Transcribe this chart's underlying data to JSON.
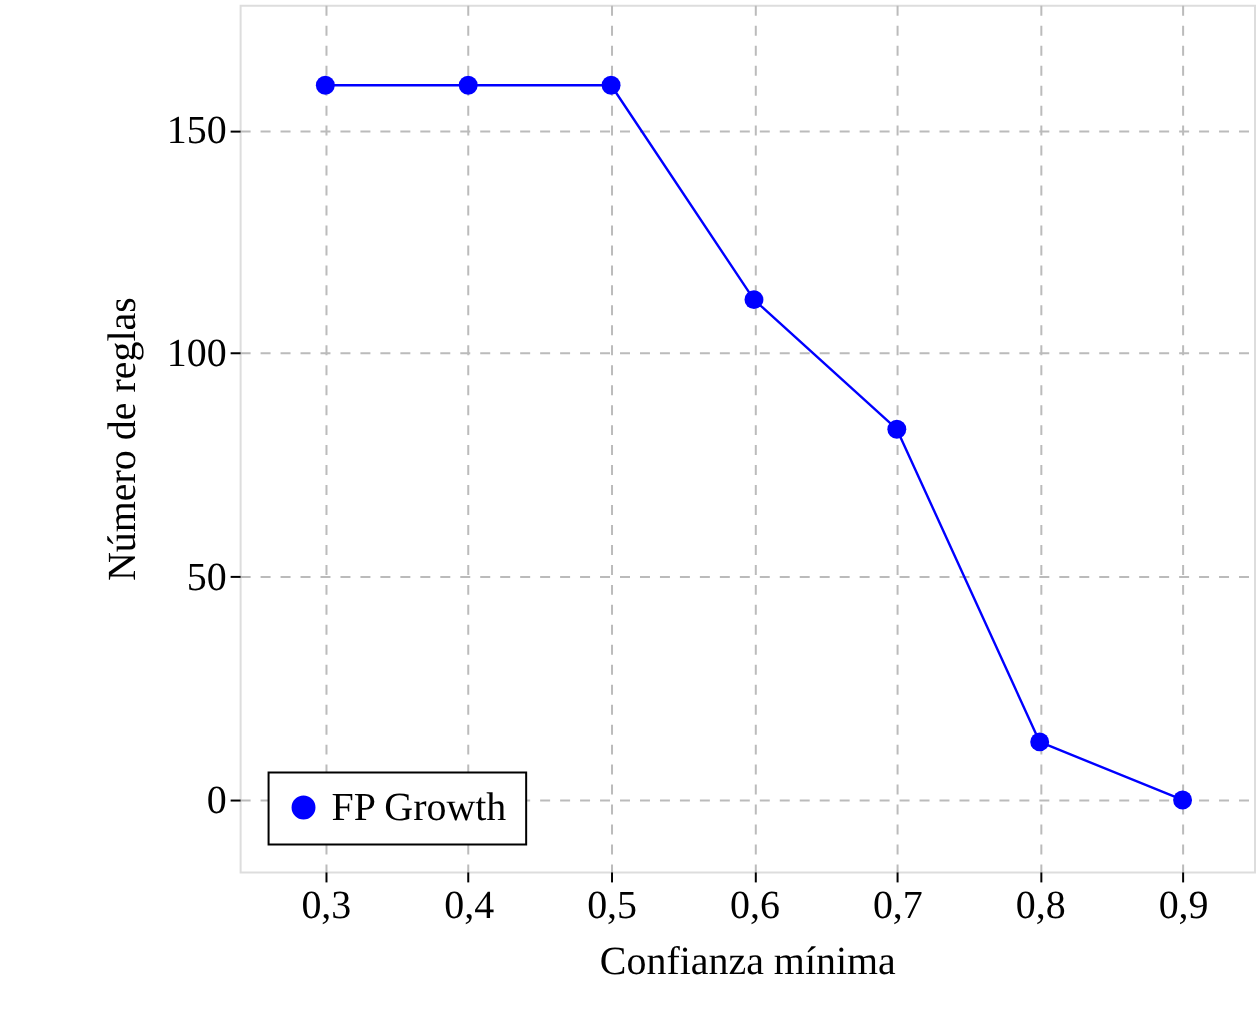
{
  "chart_data": {
    "type": "line",
    "xlabel": "Confianza mínima",
    "ylabel": "Número de reglas",
    "x": [
      0.3,
      0.4,
      0.5,
      0.6,
      0.7,
      0.8,
      0.9
    ],
    "series": [
      {
        "name": "FP Growth",
        "color": "#0000ff",
        "values": [
          160,
          160,
          160,
          112,
          83,
          13,
          0
        ]
      }
    ],
    "xlim": [
      0.24,
      0.95
    ],
    "ylim": [
      -16,
      178
    ],
    "xticks": [
      {
        "value": 0.3,
        "label": "0,3"
      },
      {
        "value": 0.4,
        "label": "0,4"
      },
      {
        "value": 0.5,
        "label": "0,5"
      },
      {
        "value": 0.6,
        "label": "0,6"
      },
      {
        "value": 0.7,
        "label": "0,7"
      },
      {
        "value": 0.8,
        "label": "0,8"
      },
      {
        "value": 0.9,
        "label": "0,9"
      }
    ],
    "yticks": [
      0,
      50,
      100,
      150
    ],
    "grid": true,
    "legend": "bottom left",
    "marker": "circle",
    "line_style": "solid"
  }
}
